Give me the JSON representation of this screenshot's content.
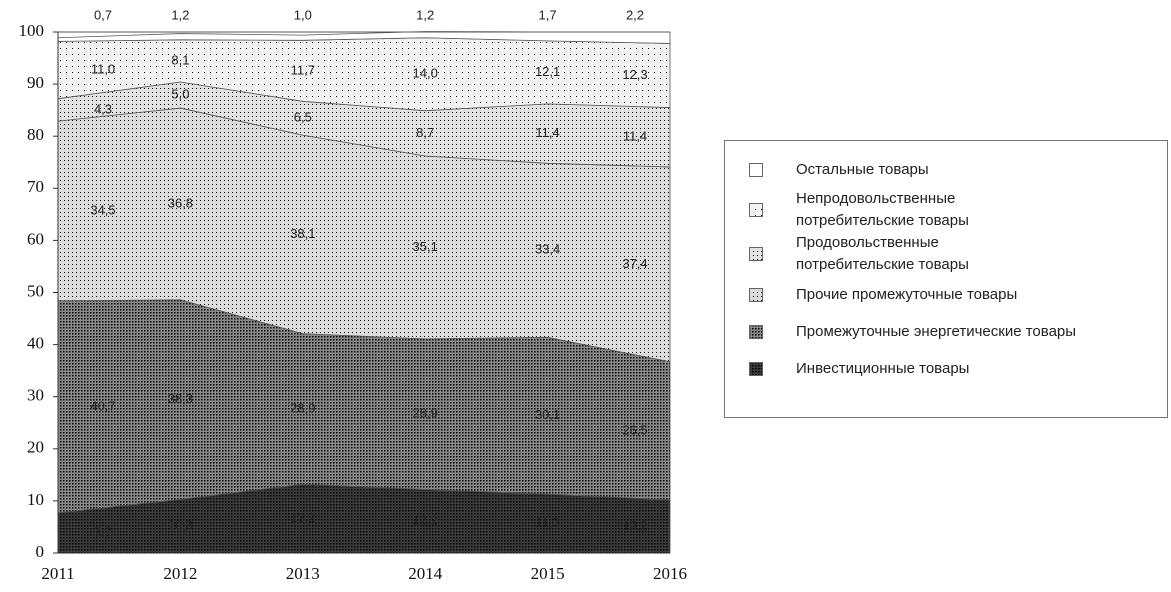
{
  "chart_data": {
    "type": "stacked-area",
    "x": [
      2011,
      2012,
      2013,
      2014,
      2015,
      2016
    ],
    "xlim": [
      2011,
      2016
    ],
    "xticks": [
      2011,
      2012,
      2013,
      2014,
      2015,
      2016
    ],
    "ylim": [
      0,
      100
    ],
    "yticks": [
      0,
      10,
      20,
      30,
      40,
      50,
      60,
      70,
      80,
      90,
      100
    ],
    "legend": "right",
    "series": [
      {
        "name": "Инвестиционные товары",
        "color": "#3c3c3c",
        "values": [
          7.7,
          10.3,
          13.2,
          12.2,
          11.3,
          10.2
        ],
        "value_labels": [
          "7,7",
          "10,3",
          "13,2",
          "12,2",
          "11,3",
          "10,2"
        ]
      },
      {
        "name": "Промежуточные энергетические товары",
        "color": "#8a8a8a",
        "values": [
          40.7,
          38.3,
          28.9,
          28.9,
          30.1,
          26.5
        ],
        "value_labels": [
          "40,7",
          "38,3",
          "28,9",
          "28,9",
          "30,1",
          "26,5"
        ]
      },
      {
        "name": "Прочие промежуточные товары",
        "color": "#dcdcdc",
        "values": [
          34.5,
          36.8,
          38.1,
          35.1,
          33.4,
          37.4
        ],
        "value_labels": [
          "34,5",
          "36,8",
          "38,1",
          "35,1",
          "33,4",
          "37,4"
        ]
      },
      {
        "name": "Продовольственные потребительские товары",
        "color": "#e2e2e2",
        "values": [
          4.3,
          5.0,
          6.5,
          8.7,
          11.4,
          11.4
        ],
        "value_labels": [
          "4,3",
          "5,0",
          "6,5",
          "8,7",
          "11,4",
          "11,4"
        ]
      },
      {
        "name": "Непродовольственные потребительские товары",
        "color": "#f2f2f2",
        "values": [
          11.0,
          8.1,
          11.7,
          14.0,
          12.1,
          12.3
        ],
        "value_labels": [
          "11,0",
          "8,1",
          "11,7",
          "14,0",
          "12,1",
          "12,3"
        ]
      },
      {
        "name": "Остальные товары",
        "color": "#ffffff",
        "values": [
          0.7,
          1.2,
          1.0,
          1.2,
          1.7,
          2.2
        ],
        "value_labels": [
          "0,7",
          "1,2",
          "1,0",
          "1,2",
          "1,7",
          "2,2"
        ]
      }
    ]
  }
}
